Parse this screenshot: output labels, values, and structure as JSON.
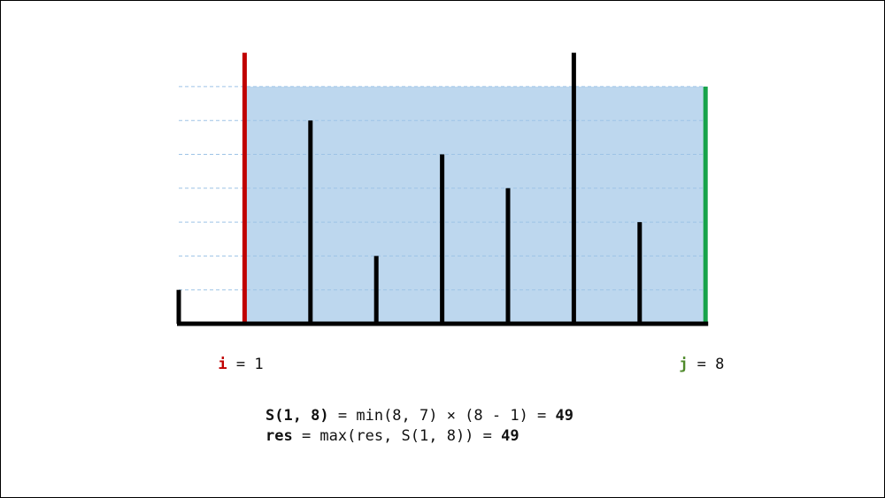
{
  "heights": [
    1,
    8,
    6,
    2,
    5,
    4,
    8,
    3,
    7
  ],
  "left": {
    "name": "i",
    "sep": " = ",
    "index": 1
  },
  "right": {
    "name": "j",
    "sep": " = ",
    "index": 8
  },
  "lines": [
    [
      {
        "text": "S(1, 8)",
        "bold": true
      },
      {
        "text": " = min(8, 7) × (8 - 1) = "
      },
      {
        "text": "49",
        "bold": true
      }
    ],
    [
      {
        "text": "res",
        "bold": true
      },
      {
        "text": " = max(res, S(1, 8)) = "
      },
      {
        "text": "49",
        "bold": true
      }
    ]
  ]
}
